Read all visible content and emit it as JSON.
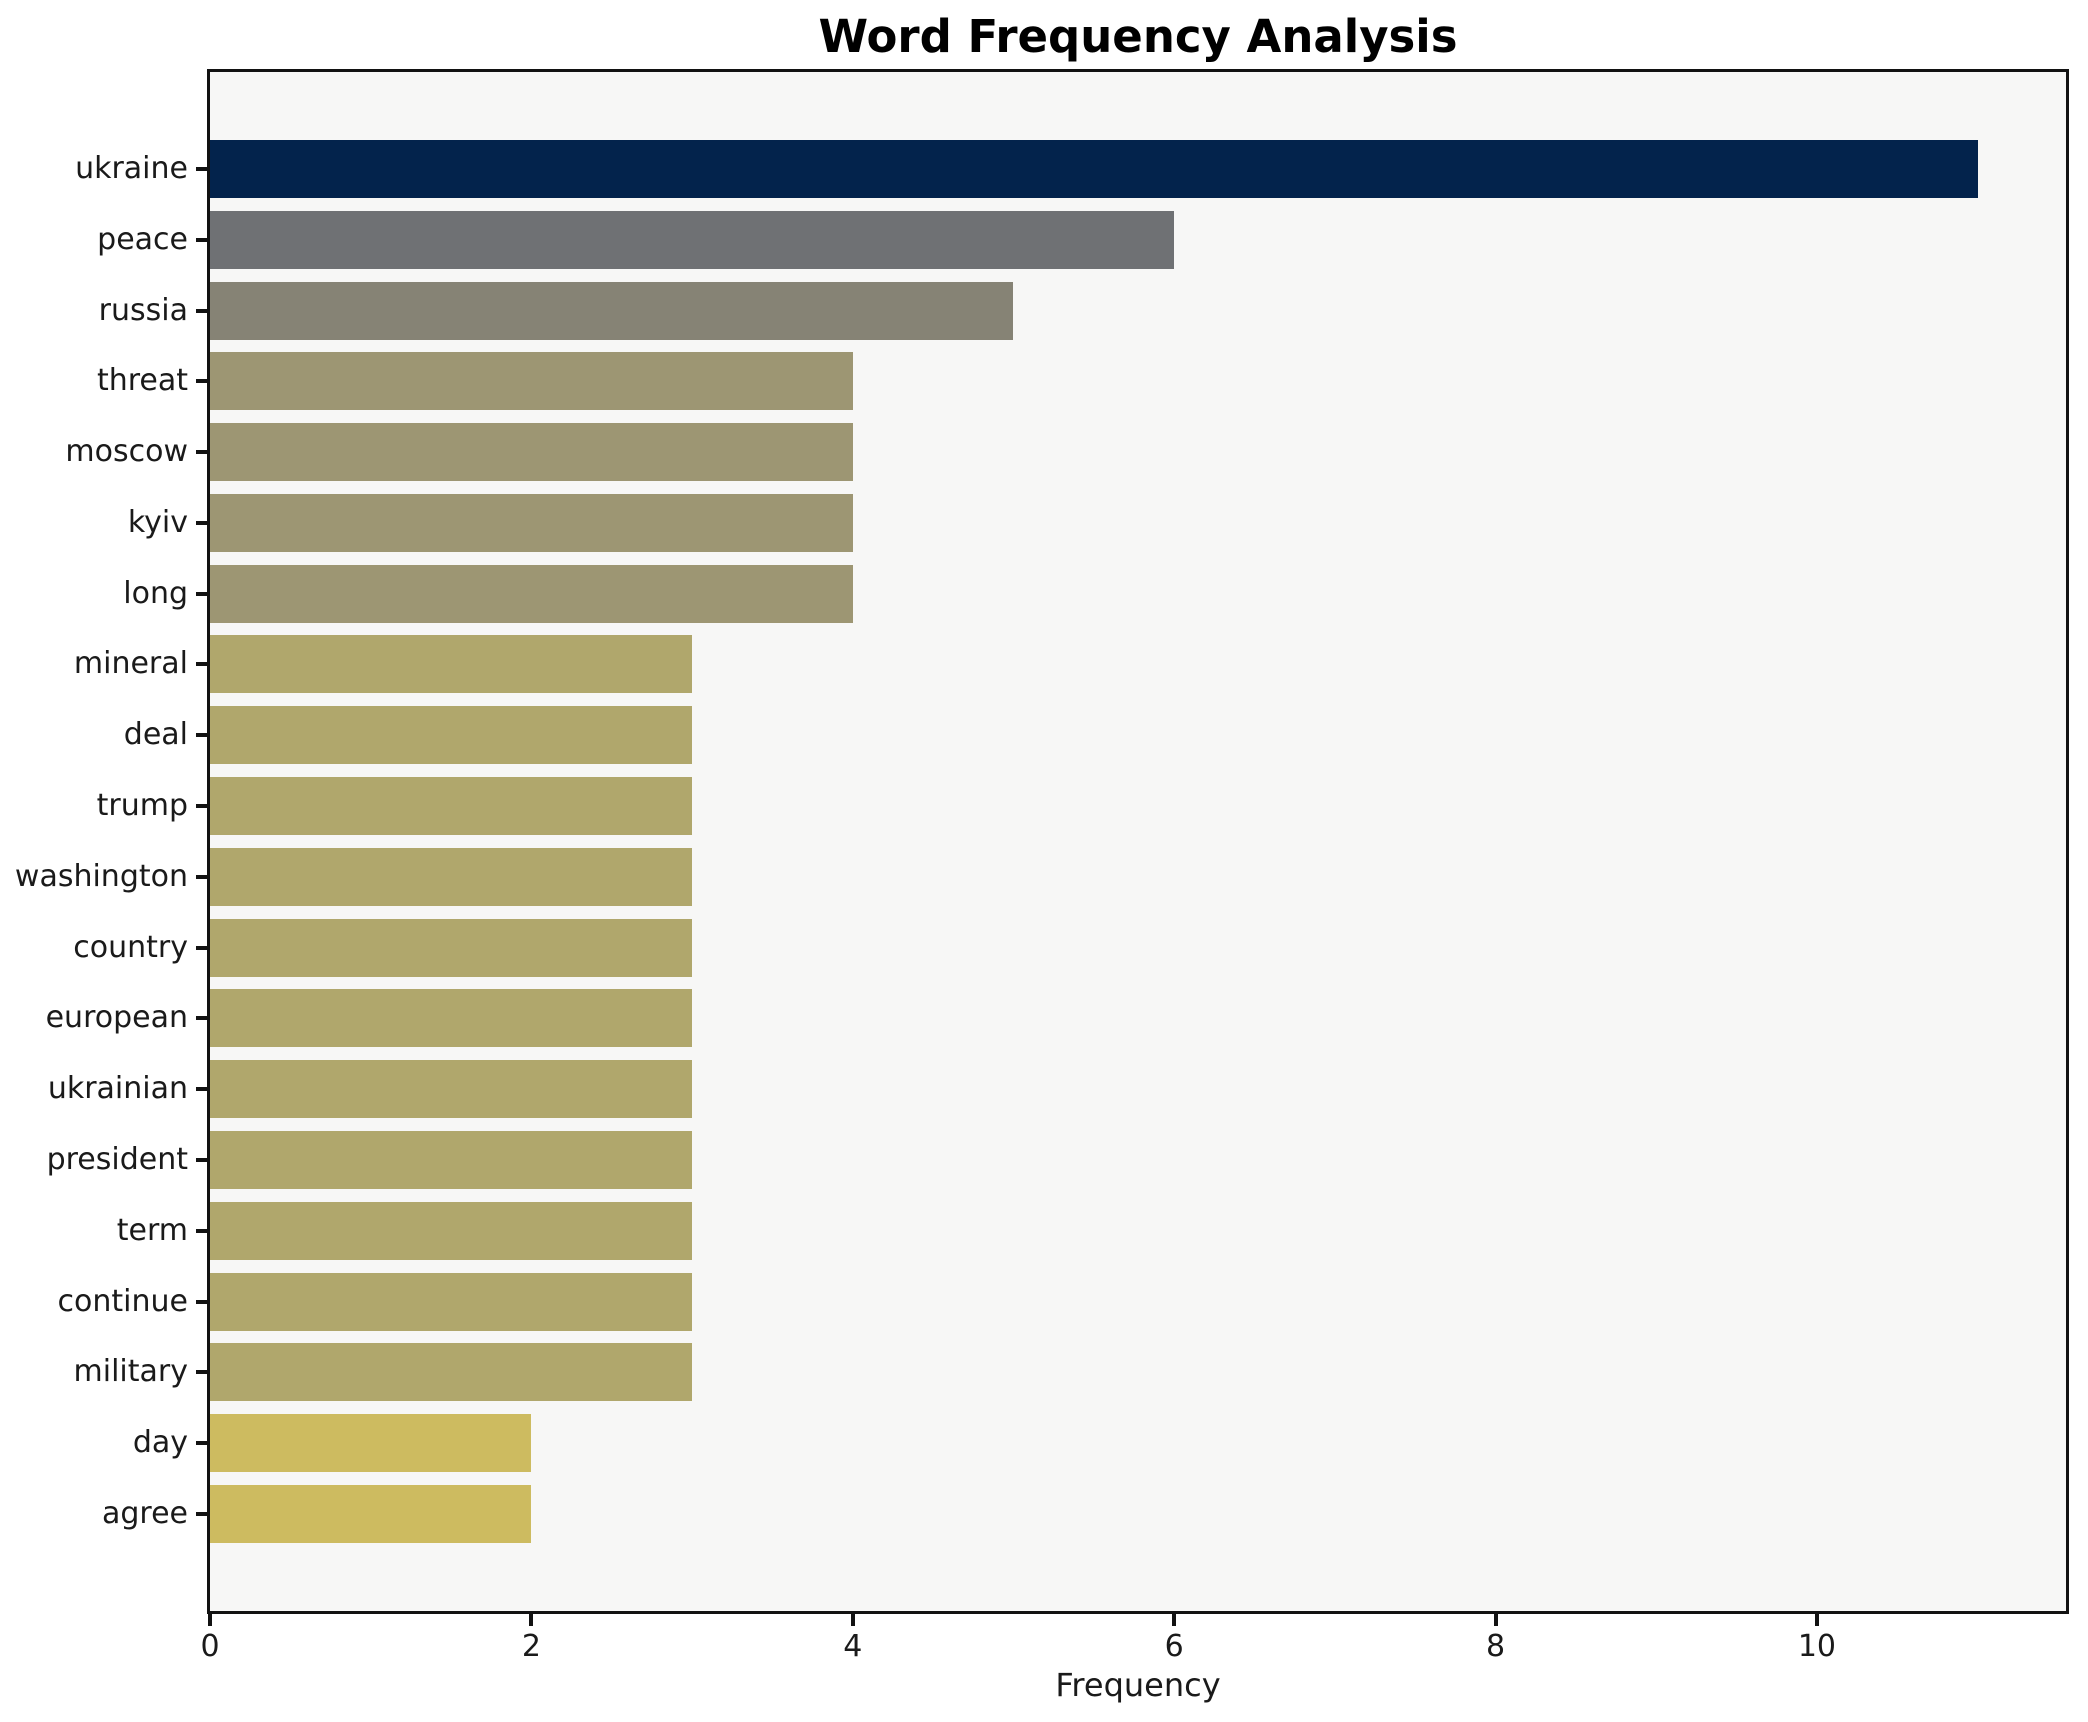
{
  "chart_data": {
    "type": "bar",
    "orientation": "horizontal",
    "title": "Word Frequency Analysis",
    "xlabel": "Frequency",
    "ylabel": "",
    "categories": [
      "ukraine",
      "peace",
      "russia",
      "threat",
      "moscow",
      "kyiv",
      "long",
      "mineral",
      "deal",
      "trump",
      "washington",
      "country",
      "european",
      "ukrainian",
      "president",
      "term",
      "continue",
      "military",
      "day",
      "agree"
    ],
    "values": [
      11,
      6,
      5,
      4,
      4,
      4,
      4,
      3,
      3,
      3,
      3,
      3,
      3,
      3,
      3,
      3,
      3,
      3,
      2,
      2
    ],
    "bar_colors": [
      "#03234c",
      "#6f7174",
      "#868375",
      "#9d9673",
      "#9d9673",
      "#9d9673",
      "#9d9673",
      "#b0a76c",
      "#b0a76c",
      "#b0a76c",
      "#b0a76c",
      "#b0a76c",
      "#b0a76c",
      "#b0a76c",
      "#b0a76c",
      "#b0a76c",
      "#b0a76c",
      "#b0a76c",
      "#cdbb60",
      "#cdbb60"
    ],
    "x_ticks": [
      0,
      2,
      4,
      6,
      8,
      10
    ],
    "xlim": [
      0,
      11.55
    ],
    "grid": false,
    "legend": null,
    "colormap": "cividis",
    "plot_background": "#f7f7f6",
    "figure_background": "#ffffff",
    "spine_color": "#121212",
    "text_color": "#1a1a1a"
  }
}
